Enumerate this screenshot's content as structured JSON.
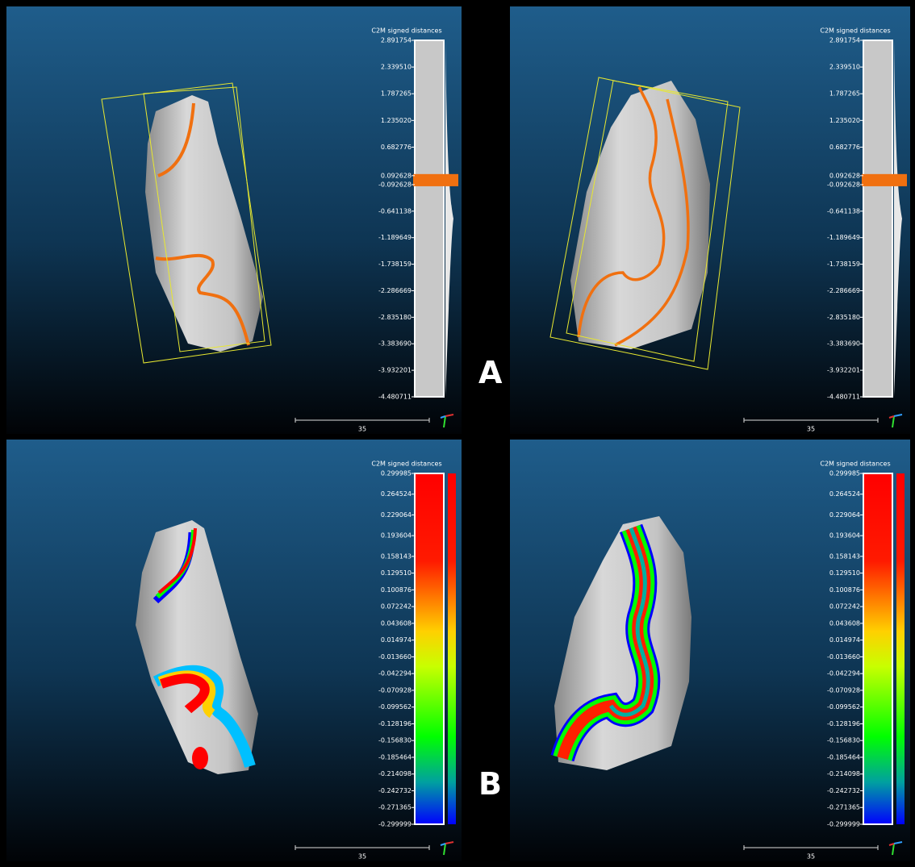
{
  "panels": [
    {
      "colorbar_title": "C2M signed distances",
      "scale_label": "35",
      "colorbar_ticks": [
        "2.891754",
        "2.339510",
        "1.787265",
        "1.235020",
        "0.682776",
        "0.092628",
        "-0.092628",
        "-0.641138",
        "-1.189649",
        "-1.738159",
        "-2.286669",
        "-2.835180",
        "-3.383690",
        "-3.932201",
        "-4.480711"
      ]
    },
    {
      "colorbar_title": "C2M signed distances",
      "scale_label": "35",
      "colorbar_ticks": [
        "2.891754",
        "2.339510",
        "1.787265",
        "1.235020",
        "0.682776",
        "0.092628",
        "-0.092628",
        "-0.641138",
        "-1.189649",
        "-1.738159",
        "-2.286669",
        "-2.835180",
        "-3.383690",
        "-3.932201",
        "-4.480711"
      ]
    },
    {
      "colorbar_title": "C2M signed distances",
      "scale_label": "35",
      "colorbar_ticks": [
        "0.299985",
        "0.264524",
        "0.229064",
        "0.193604",
        "0.158143",
        "0.129510",
        "0.100876",
        "0.072242",
        "0.043608",
        "0.014974",
        "-0.013660",
        "-0.042294",
        "-0.070928",
        "-0.099562",
        "-0.128196",
        "-0.156830",
        "-0.185464",
        "-0.214098",
        "-0.242732",
        "-0.271365",
        "-0.299999"
      ]
    },
    {
      "colorbar_title": "C2M signed distances",
      "scale_label": "35",
      "colorbar_ticks": [
        "0.299985",
        "0.264524",
        "0.229064",
        "0.193604",
        "0.158143",
        "0.129510",
        "0.100876",
        "0.072242",
        "0.043608",
        "0.014974",
        "-0.013660",
        "-0.042294",
        "-0.070928",
        "-0.099562",
        "-0.128196",
        "-0.156830",
        "-0.185464",
        "-0.214098",
        "-0.242732",
        "-0.271365",
        "-0.299999"
      ]
    }
  ],
  "labels": [
    "A",
    "B"
  ]
}
